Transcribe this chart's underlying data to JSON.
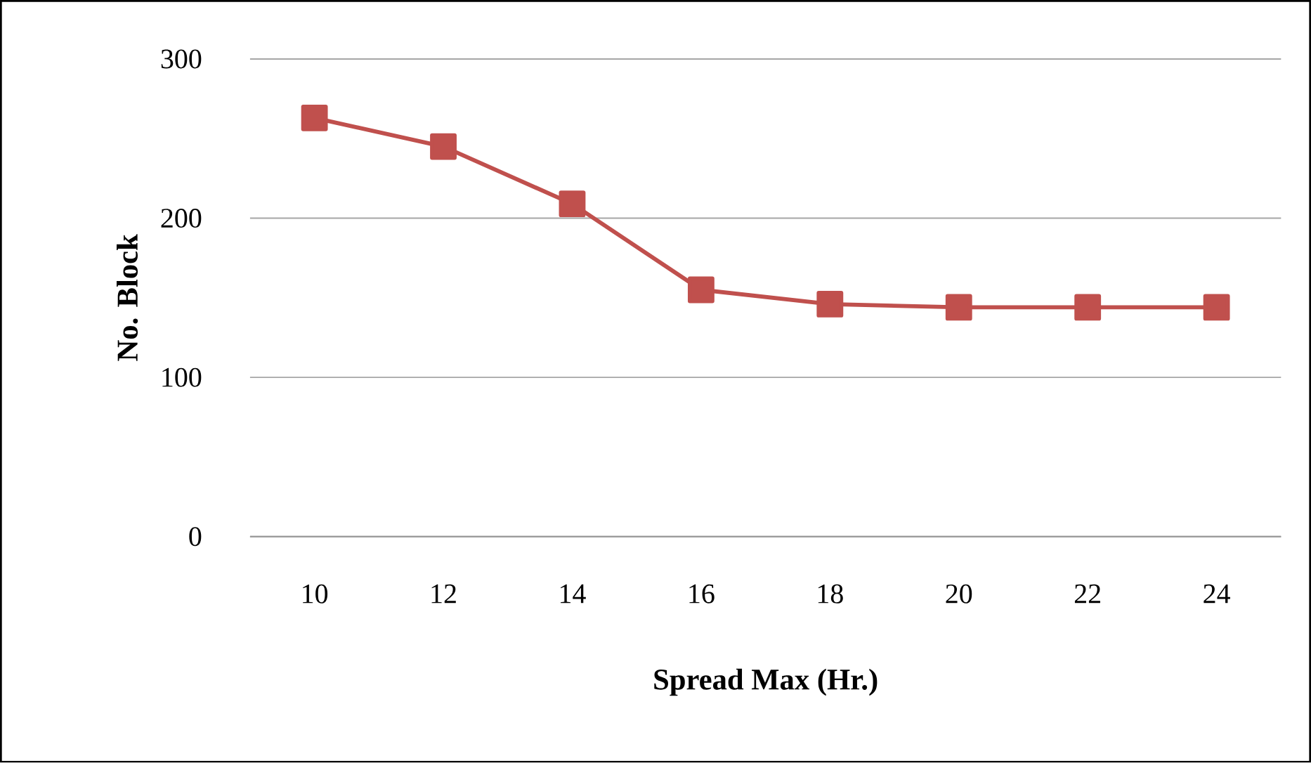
{
  "chart_data": {
    "type": "line",
    "xlabel": "Spread Max (Hr.)",
    "ylabel": "No. Block",
    "categories": [
      "10",
      "12",
      "14",
      "16",
      "18",
      "20",
      "22",
      "24"
    ],
    "series": [
      {
        "color": "#c0504d",
        "values": [
          263,
          245,
          209,
          155,
          146,
          144,
          144,
          144
        ]
      }
    ],
    "ylim": [
      0,
      300
    ],
    "yticks": [
      0,
      100,
      200,
      300
    ],
    "grid": "y",
    "marker": "square",
    "line_style": "solid"
  }
}
